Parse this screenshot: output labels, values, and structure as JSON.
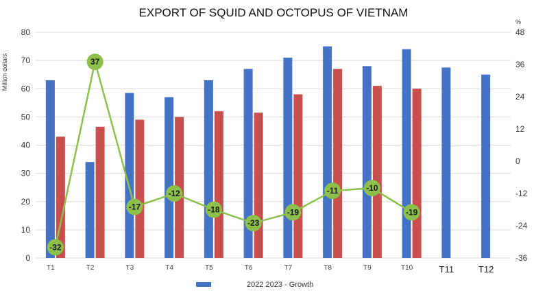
{
  "chart_data": {
    "type": "bar",
    "title": "EXPORT OF SQUID AND OCTOPUS OF VIETNAM",
    "ylabel": "Million dollars",
    "y2label": "%",
    "categories": [
      "T1",
      "T2",
      "T3",
      "T4",
      "T5",
      "T6",
      "T7",
      "T8",
      "T9",
      "T10",
      "T11",
      "T12"
    ],
    "ylim": [
      0,
      80
    ],
    "yticks": [
      0,
      10,
      20,
      30,
      40,
      50,
      60,
      70,
      80
    ],
    "y2lim": [
      -36,
      48
    ],
    "y2ticks": [
      -36,
      -24,
      -12,
      0,
      12,
      24,
      36,
      48
    ],
    "grid": true,
    "legend_position": "bottom",
    "legend_text": "2022 2023 - Growth",
    "series": [
      {
        "name": "2022",
        "type": "bar",
        "axis": "left",
        "color": "#4472c4",
        "values": [
          63,
          34,
          58.5,
          57,
          63,
          67,
          71,
          75,
          68,
          74,
          67.5,
          65
        ]
      },
      {
        "name": "2023",
        "type": "bar",
        "axis": "left",
        "color": "#c94f4f",
        "values": [
          43,
          46.5,
          49,
          50,
          52,
          51.5,
          58,
          67,
          61,
          60,
          null,
          null
        ]
      },
      {
        "name": "Growth",
        "type": "line",
        "axis": "right",
        "color": "#8dc04b",
        "values": [
          -32,
          37,
          -17,
          -12,
          -18,
          -23,
          -19,
          -11,
          -10,
          -19,
          null,
          null
        ]
      }
    ]
  }
}
